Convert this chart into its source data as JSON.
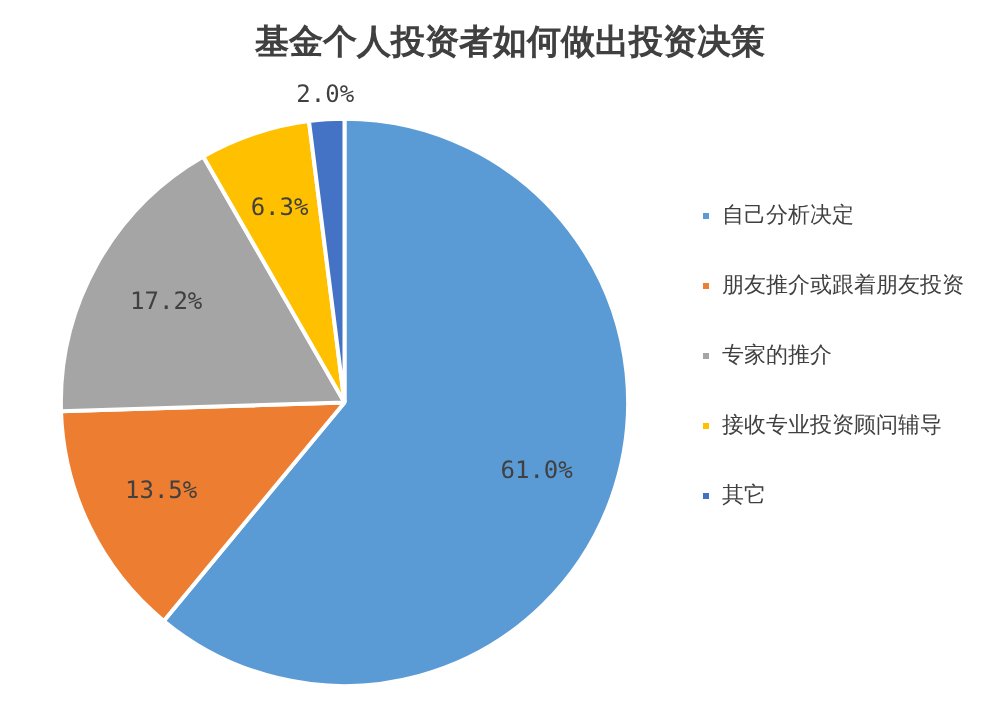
{
  "chart_data": {
    "type": "pie",
    "title": "基金个人投资者如何做出投资决策",
    "categories": [
      "自己分析决定",
      "朋友推介或跟着朋友投资",
      "专家的推介",
      "接收专业投资顾问辅导",
      "其它"
    ],
    "values": [
      61.0,
      13.5,
      17.2,
      6.3,
      2.0
    ],
    "colors": [
      "#5b9bd5",
      "#ed7d31",
      "#a5a5a5",
      "#ffc000",
      "#4472c4"
    ],
    "value_labels": [
      "61.0%",
      "13.5%",
      "17.2%",
      "6.3%",
      "2.0%"
    ],
    "legend": "right"
  }
}
